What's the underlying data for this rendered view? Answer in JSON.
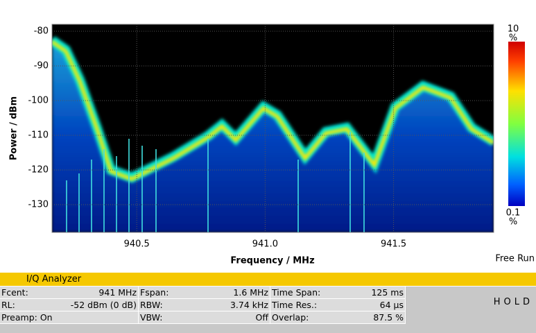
{
  "chart_data": {
    "type": "persistence",
    "xlabel": "Frequency / MHz",
    "ylabel": "Power / dBm",
    "xlim": [
      940.17,
      941.89
    ],
    "xticks": [
      940.5,
      {
        "value": 941,
        "label": "941.0"
      },
      941.5
    ],
    "ylim": [
      -138,
      -78
    ],
    "yticks": [
      -80,
      -90,
      -100,
      -110,
      -120,
      -130
    ],
    "grid": true,
    "colorbar": {
      "max": 10,
      "min": 0.1,
      "unit": "%"
    },
    "trigger": "Free Run"
  },
  "status_bar": {
    "title": "I/Q Analyzer",
    "rows": [
      [
        [
          "Fcent:",
          "941 MHz"
        ],
        [
          "Fspan:",
          "1.6 MHz"
        ],
        [
          "Time Span:",
          "125 ms"
        ]
      ],
      [
        [
          "RL:",
          "-52 dBm (0 dB)"
        ],
        [
          "RBW:",
          "3.74 kHz"
        ],
        [
          "Time Res.:",
          "64 µs"
        ]
      ],
      [
        [
          "Preamp: On",
          ""
        ],
        [
          "VBW:",
          "Off"
        ],
        [
          "Overlap:",
          "87.5 %"
        ]
      ]
    ],
    "state": "HOLD"
  }
}
